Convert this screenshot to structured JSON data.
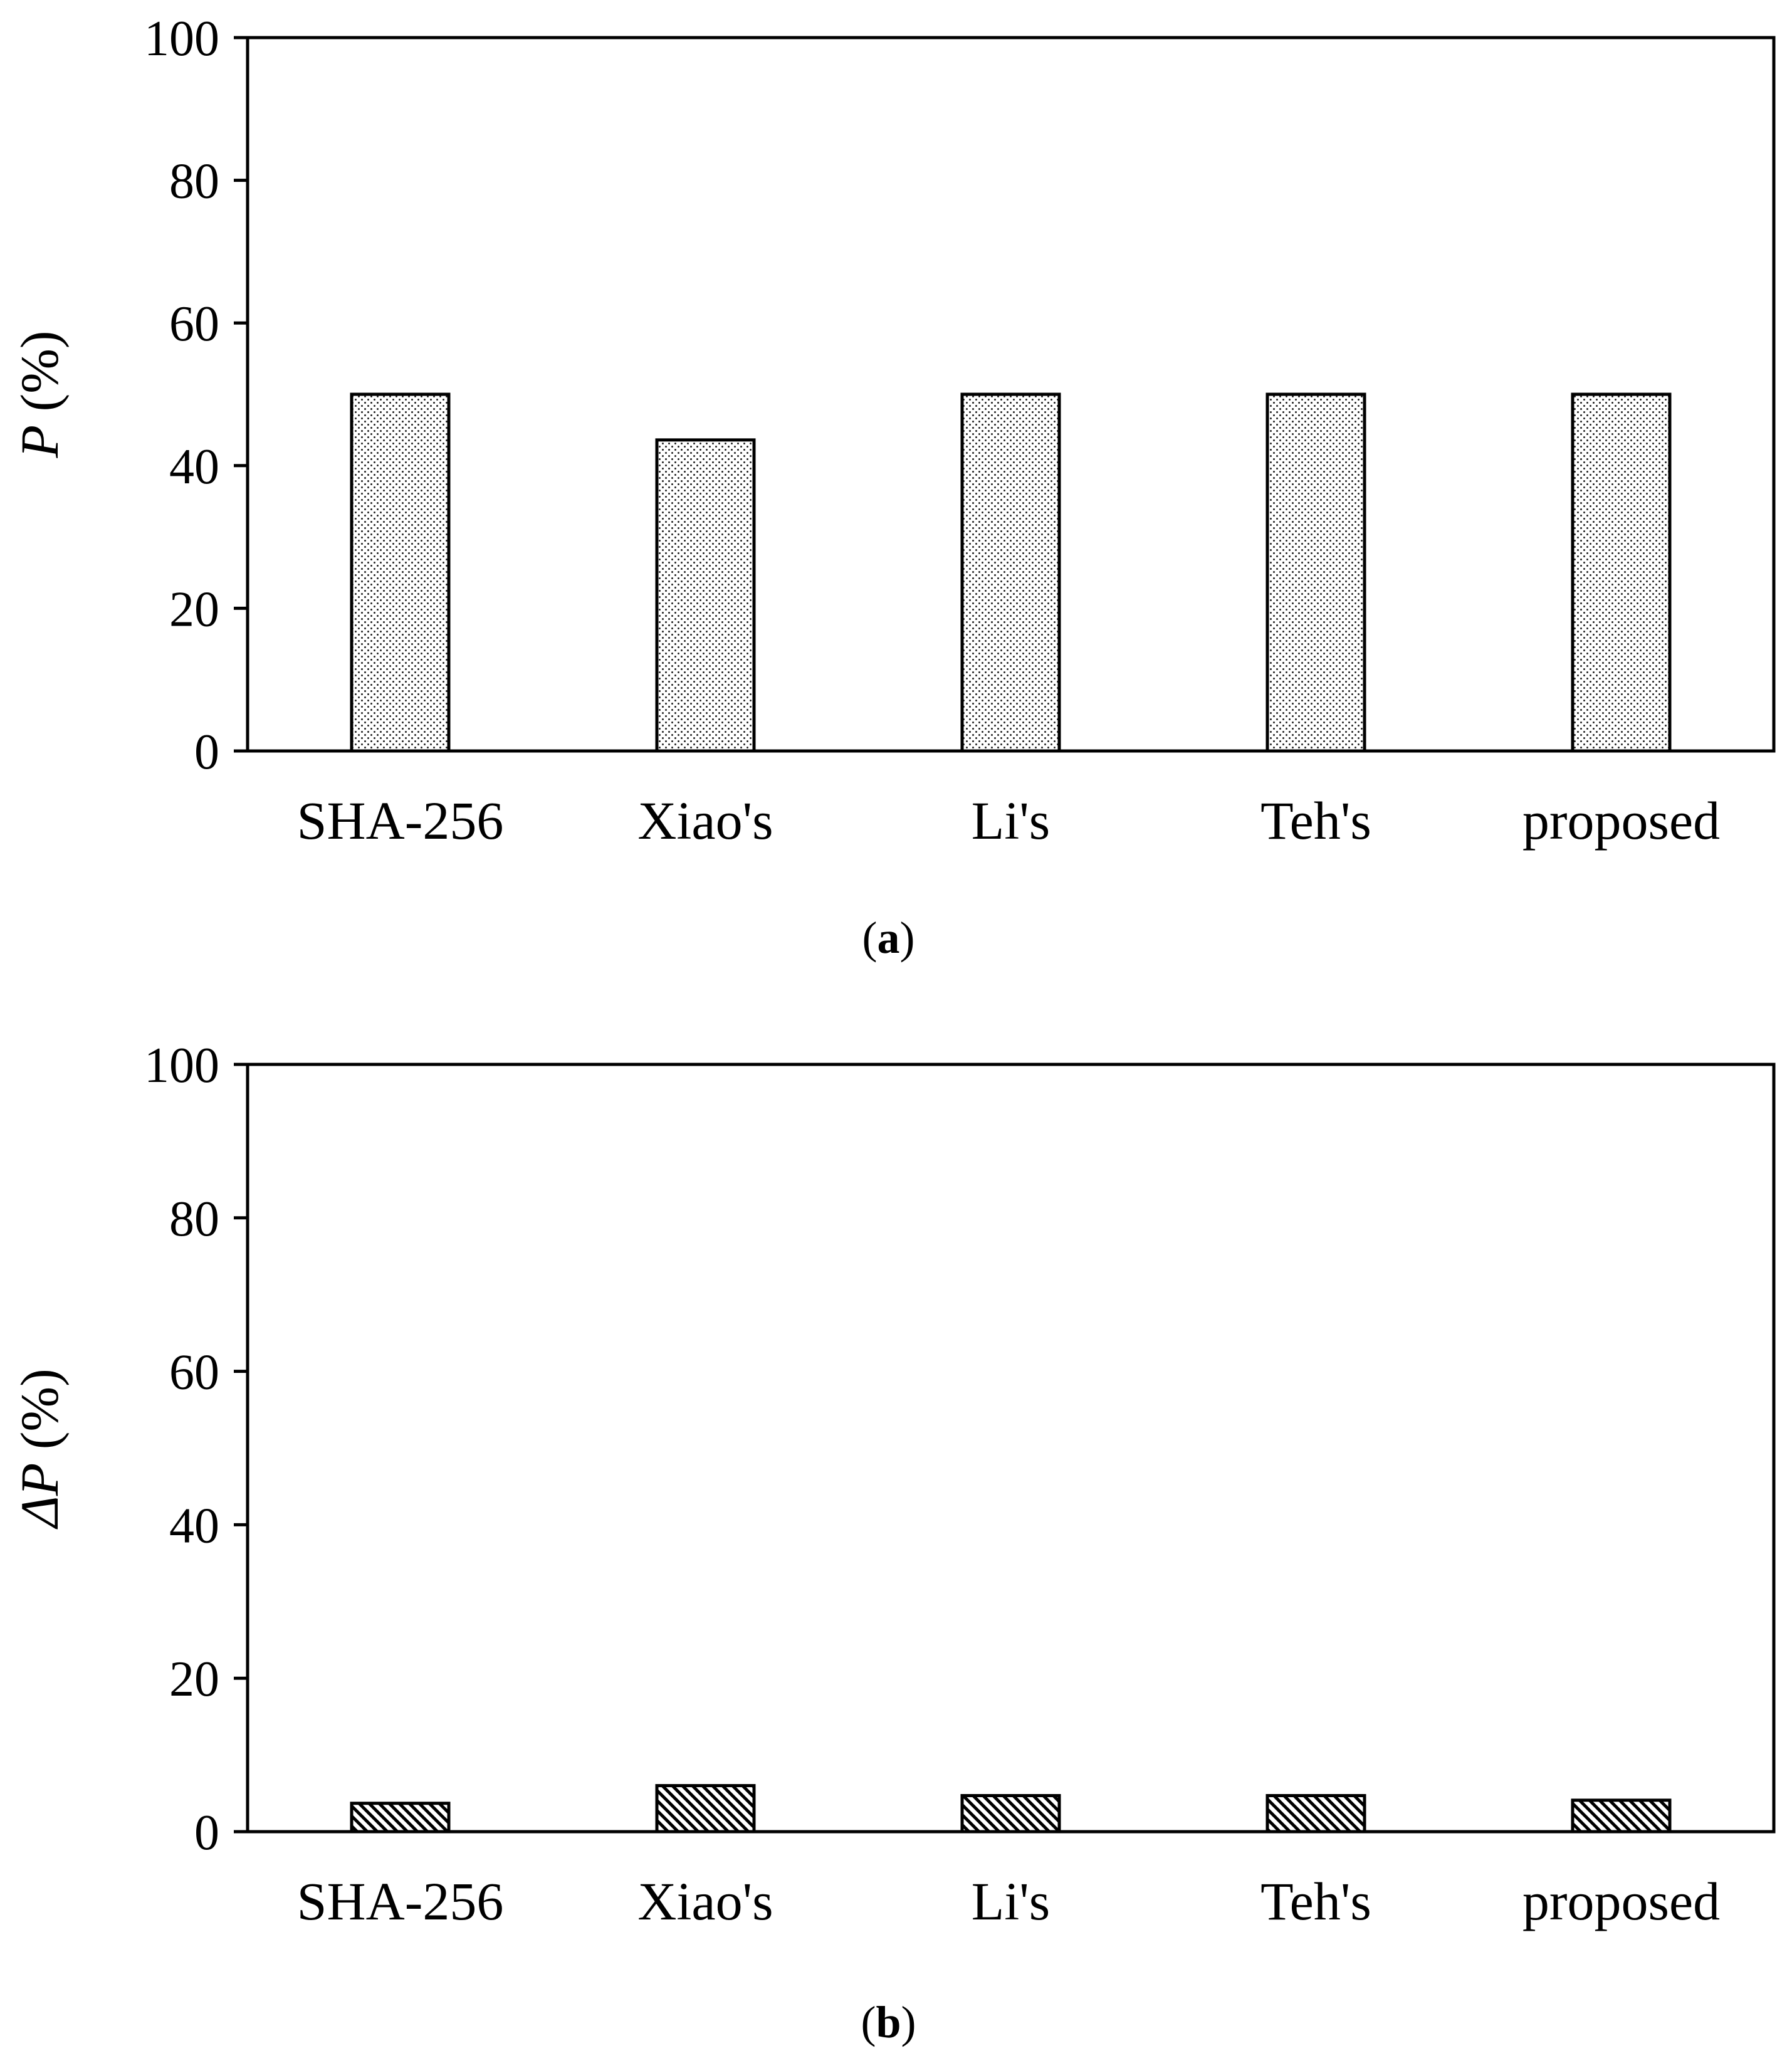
{
  "chart_data": [
    {
      "type": "bar",
      "panel_label": "a",
      "categories": [
        "SHA-256",
        "Xiao's",
        "Li's",
        "Teh's",
        "proposed"
      ],
      "values": [
        50,
        43.6,
        50,
        50,
        50
      ],
      "ylabel_var": "P",
      "ylabel_unit": " (%)",
      "ylim": [
        0,
        100
      ],
      "yticks": [
        "0",
        "20",
        "40",
        "60",
        "80",
        "100"
      ],
      "bar_pattern": "dots",
      "grid": false
    },
    {
      "type": "bar",
      "panel_label": "b",
      "categories": [
        "SHA-256",
        "Xiao's",
        "Li's",
        "Teh's",
        "proposed"
      ],
      "values": [
        3.7,
        6.0,
        4.7,
        4.7,
        4.1
      ],
      "ylabel_var": "ΔP",
      "ylabel_unit": " (%)",
      "ylim": [
        0,
        100
      ],
      "yticks": [
        "0",
        "20",
        "40",
        "60",
        "80",
        "100"
      ],
      "bar_pattern": "diagonal-hatch",
      "grid": false
    }
  ],
  "colors": {
    "bar_fill": "#ffffff",
    "pattern": "#000000",
    "axis": "#000000"
  }
}
